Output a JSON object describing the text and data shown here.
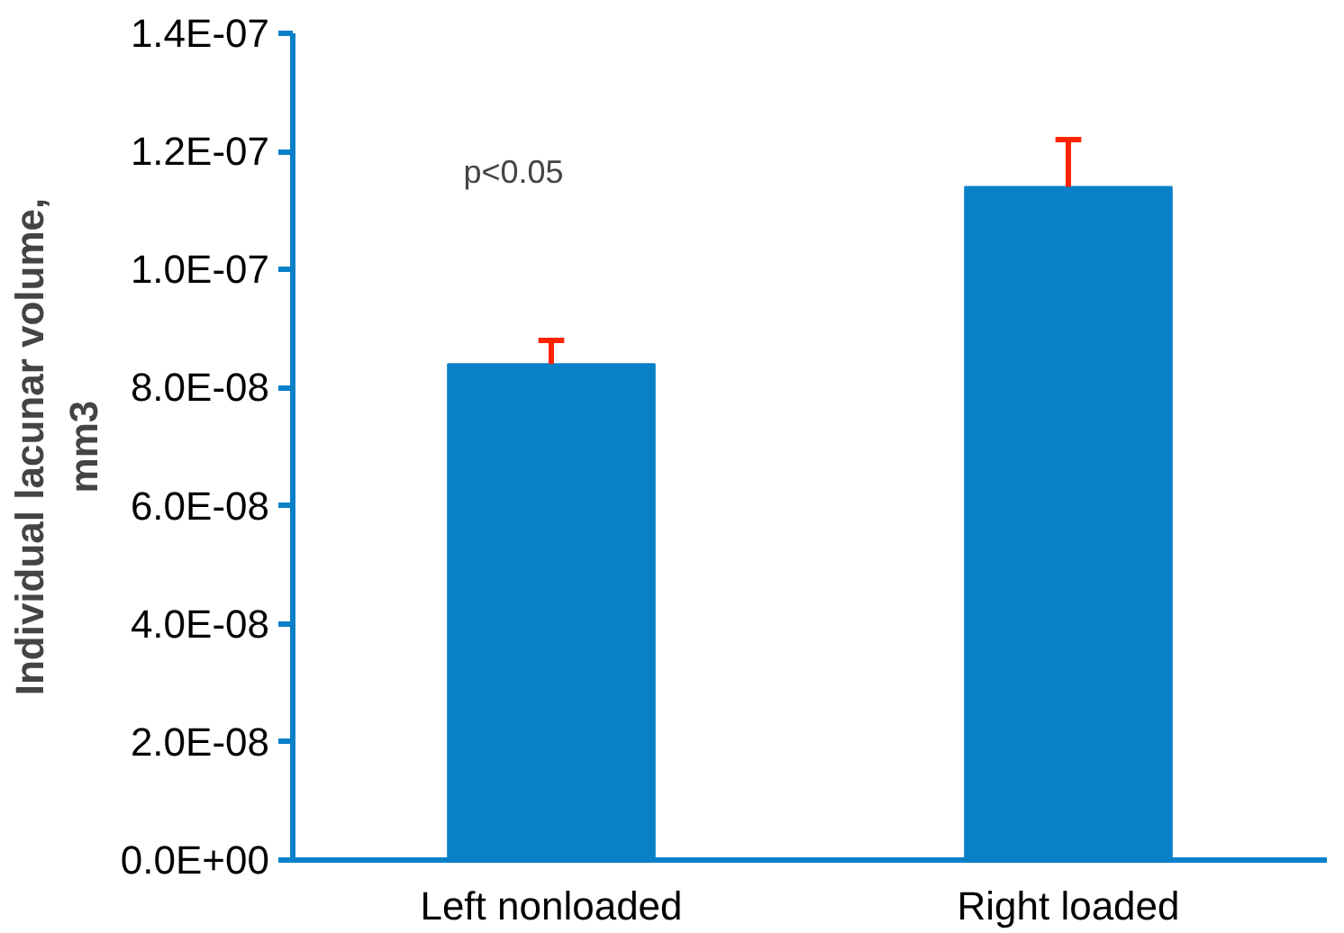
{
  "chart_data": {
    "type": "bar",
    "ylabel": "Individual lacunar volume,\nmm3",
    "categories": [
      "Left nonloaded",
      "Right loaded"
    ],
    "values": [
      8.4e-08,
      1.14e-07
    ],
    "errors": [
      [
        8.4e-08,
        8.8e-08
      ],
      [
        1.14e-07,
        1.22e-07
      ]
    ],
    "color": "#0a80c8",
    "ylim": [
      0,
      1.4e-07
    ],
    "yticks": [
      {
        "value": 0,
        "label": "0.0E+00"
      },
      {
        "value": 2e-08,
        "label": "2.0E-08"
      },
      {
        "value": 4e-08,
        "label": "4.0E-08"
      },
      {
        "value": 6e-08,
        "label": "6.0E-08"
      },
      {
        "value": 8e-08,
        "label": "8.0E-08"
      },
      {
        "value": 1e-07,
        "label": "1.0E-07"
      },
      {
        "value": 1.2e-07,
        "label": "1.2E-07"
      },
      {
        "value": 1.4e-07,
        "label": "1.4E-07"
      }
    ],
    "annotations": [
      "p<0.05"
    ],
    "grid": false
  }
}
